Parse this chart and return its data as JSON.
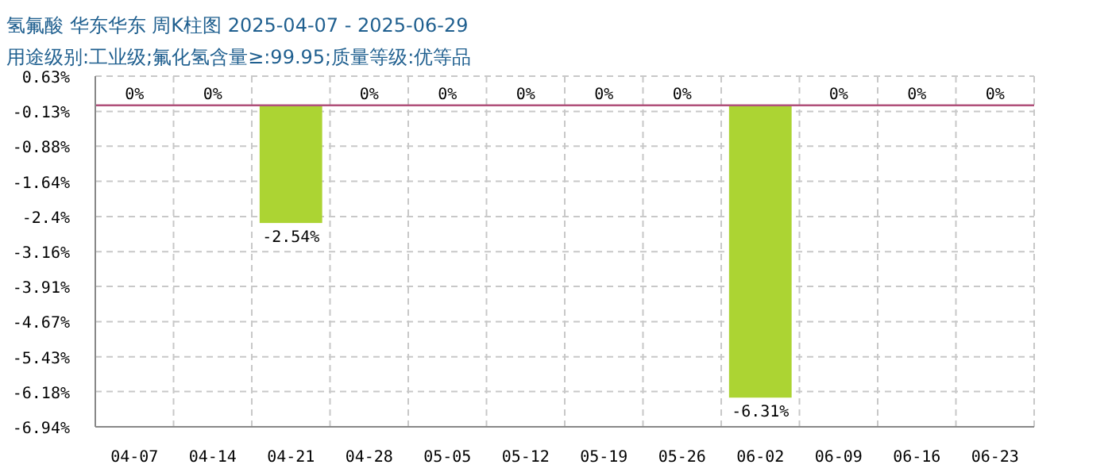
{
  "chart_data": {
    "type": "bar",
    "title": "氢氟酸 华东华东 周K柱图 2025-04-07 - 2025-06-29",
    "subtitle": "用途级别:工业级;氟化氢含量≥:99.95;质量等级:优等品",
    "categories": [
      "04-07",
      "04-14",
      "04-21",
      "04-28",
      "05-05",
      "05-12",
      "05-19",
      "05-26",
      "06-02",
      "06-09",
      "06-16",
      "06-23"
    ],
    "values": [
      0,
      0,
      -2.54,
      0,
      0,
      0,
      0,
      0,
      -6.31,
      0,
      0,
      0
    ],
    "color": "#acd433",
    "ylim": [
      -6.94,
      0.63
    ],
    "yticks": [
      {
        "value": 0.63,
        "label": "0.63%"
      },
      {
        "value": -0.13,
        "label": "-0.13%"
      },
      {
        "value": -0.88,
        "label": "-0.88%"
      },
      {
        "value": -1.64,
        "label": "-1.64%"
      },
      {
        "value": -2.4,
        "label": "-2.4%"
      },
      {
        "value": -3.16,
        "label": "-3.16%"
      },
      {
        "value": -3.91,
        "label": "-3.91%"
      },
      {
        "value": -4.67,
        "label": "-4.67%"
      },
      {
        "value": -5.43,
        "label": "-5.43%"
      },
      {
        "value": -6.18,
        "label": "-6.18%"
      },
      {
        "value": -6.94,
        "label": "-6.94%"
      }
    ],
    "grid": true,
    "value_labels": [
      "0%",
      "0%",
      "-2.54%",
      "0%",
      "0%",
      "0%",
      "0%",
      "0%",
      "-6.31%",
      "0%",
      "0%",
      "0%"
    ],
    "ref_lines": [
      {
        "axis": "y",
        "value": 0,
        "color": "#b0507a"
      }
    ]
  }
}
